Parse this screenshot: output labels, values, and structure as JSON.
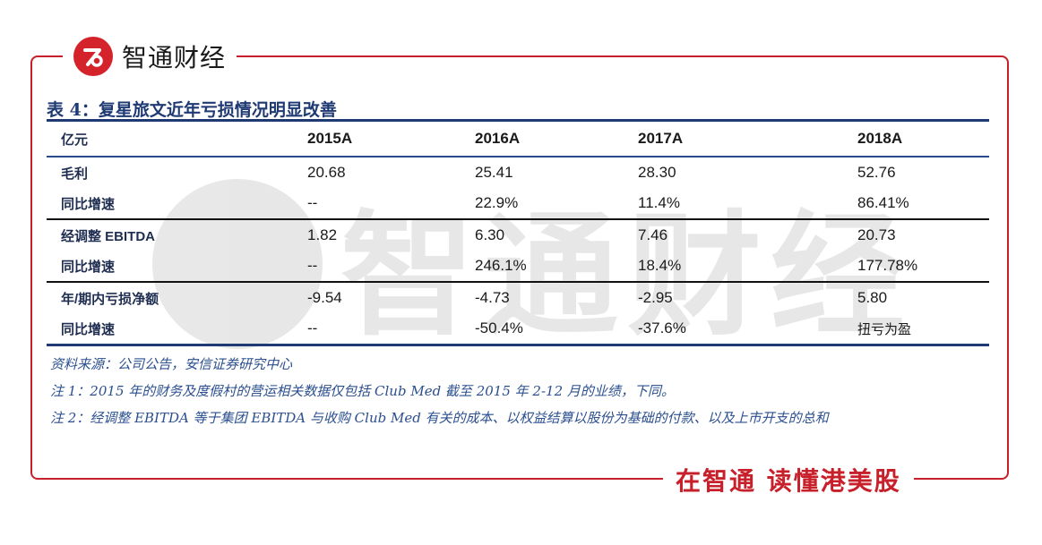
{
  "brand": {
    "name": "智通财经",
    "slogan": "在智通 读懂港美股",
    "accent": "#c8202a"
  },
  "watermark_text": "智通财经",
  "title": "表 4：复星旅文近年亏损情况明显改善",
  "table": {
    "header": [
      "亿元",
      "2015A",
      "2016A",
      "2017A",
      "2018A"
    ],
    "rows": [
      [
        "毛利",
        "20.68",
        "25.41",
        "28.30",
        "52.76"
      ],
      [
        "同比增速",
        "--",
        "22.9%",
        "11.4%",
        "86.41%"
      ],
      [
        "经调整 EBITDA",
        "1.82",
        "6.30",
        "7.46",
        "20.73"
      ],
      [
        "同比增速",
        "--",
        "246.1%",
        "18.4%",
        "177.78%"
      ],
      [
        "年/期内亏损净额",
        "-9.54",
        "-4.73",
        "-2.95",
        "5.80"
      ],
      [
        "同比增速",
        "--",
        "-50.4%",
        "-37.6%",
        "扭亏为盈"
      ]
    ]
  },
  "notes": [
    "资料来源：公司公告，安信证券研究中心",
    "注 1：2015 年的财务及度假村的营运相关数据仅包括 Club Med 截至 2015 年 2-12 月的业绩，下同。",
    "注 2：经调整 EBITDA 等于集团 EBITDA 与收购 Club Med 有关的成本、以权益结算以股份为基础的付款、以及上市开支的总和"
  ]
}
